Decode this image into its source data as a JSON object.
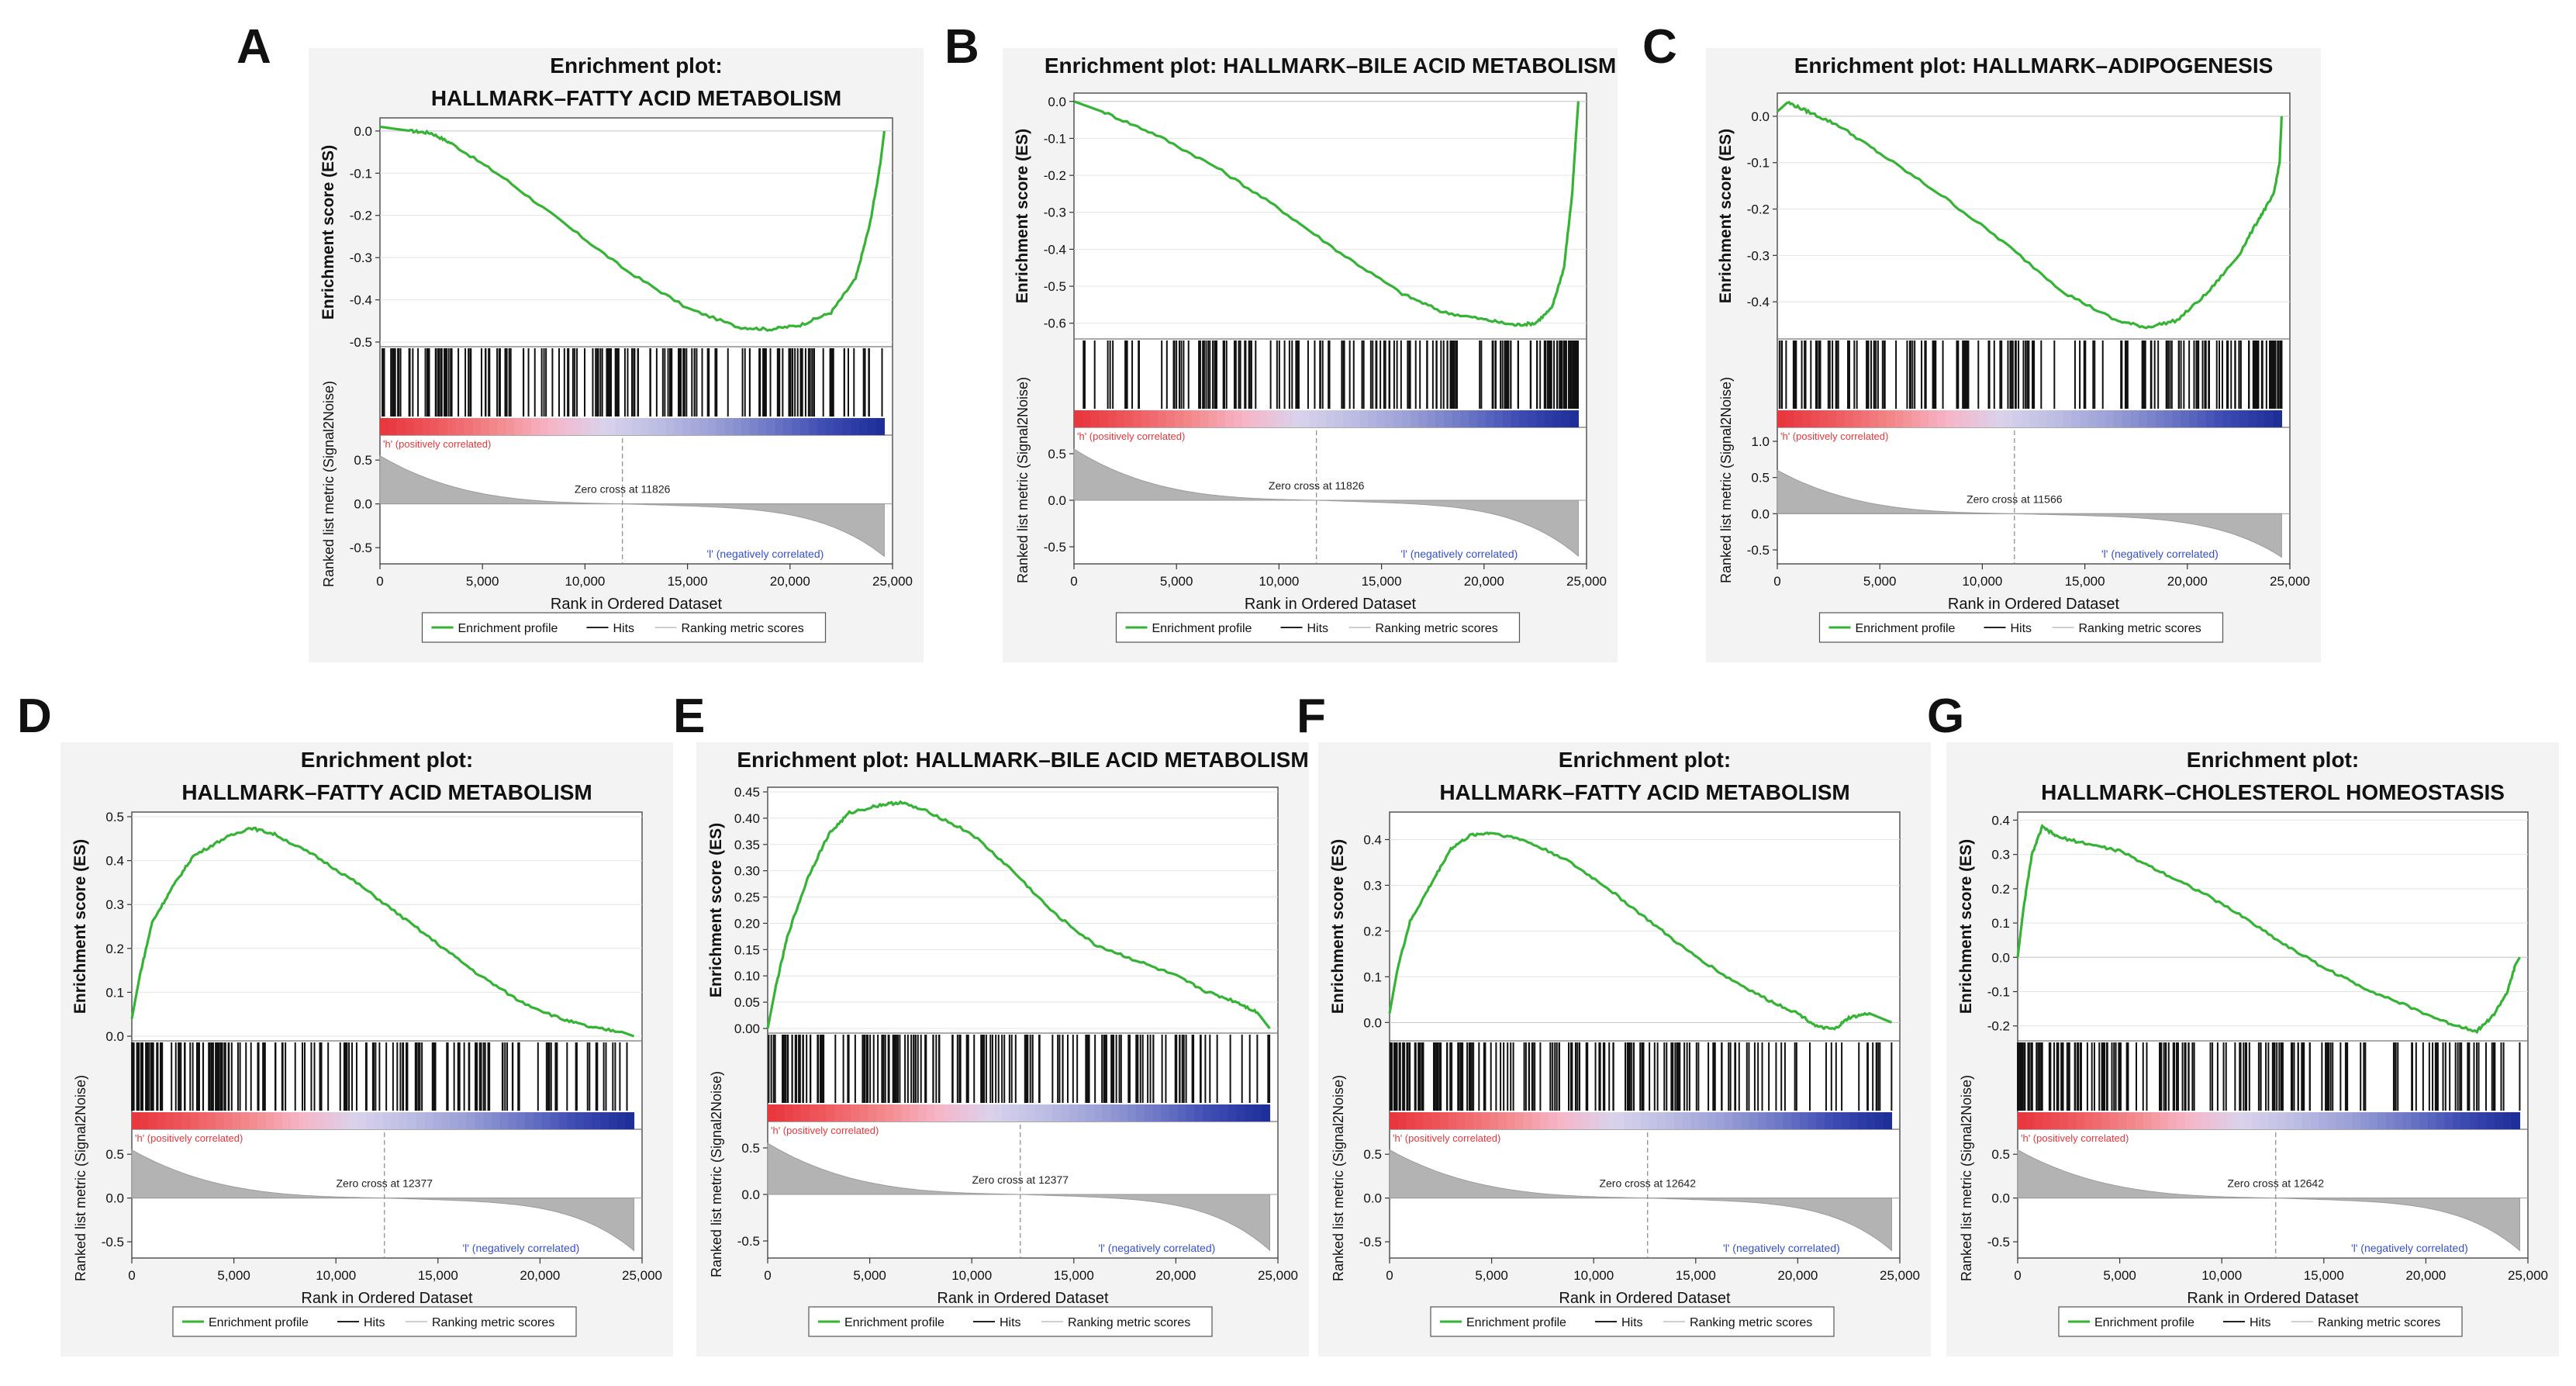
{
  "figure": {
    "panel_letters": [
      "A",
      "B",
      "C",
      "D",
      "E",
      "F",
      "G"
    ]
  },
  "colors": {
    "es_line": "#35b335",
    "hit": "#111111",
    "metric_fill": "#b3b3b3",
    "pos_label": "#e8353a",
    "neg_label": "#3650c9",
    "panel_bg": "#f3f3f3",
    "plot_bg": "#ffffff"
  },
  "chart_data": [
    {
      "type": "line",
      "letter": "A",
      "title_lines": [
        "Enrichment plot:",
        "HALLMARK–FATTY  ACID  METABOLISM"
      ],
      "ylabel": "Enrichment score (ES)",
      "yticks": [
        "0.0",
        "-0.1",
        "-0.2",
        "-0.3",
        "-0.4",
        "-0.5"
      ],
      "ylim": [
        -0.5,
        0.02
      ],
      "es_points": [
        [
          0,
          0.01
        ],
        [
          1500,
          0.0
        ],
        [
          2500,
          -0.005
        ],
        [
          3500,
          -0.03
        ],
        [
          6000,
          -0.11
        ],
        [
          9000,
          -0.22
        ],
        [
          12000,
          -0.33
        ],
        [
          15000,
          -0.42
        ],
        [
          17500,
          -0.465
        ],
        [
          19000,
          -0.47
        ],
        [
          20500,
          -0.46
        ],
        [
          22000,
          -0.43
        ],
        [
          23200,
          -0.35
        ],
        [
          23900,
          -0.22
        ],
        [
          24400,
          -0.08
        ],
        [
          24600,
          0.0
        ]
      ],
      "hit_density": "uniform",
      "metric_ylabel": "Ranked list metric (Signal2Noise)",
      "metric_yticks": [
        "0.5",
        "0.0",
        "-0.5"
      ],
      "metric_ylim": [
        -0.65,
        0.75
      ],
      "metric_start": 0.55,
      "metric_end": -0.6,
      "zero_cross": 11826,
      "zero_cross_label": "Zero cross at 11826",
      "pos_label": "'h' (positively correlated)",
      "neg_label": "'l' (negatively correlated)",
      "xlabel": "Rank in Ordered Dataset",
      "xticks": [
        "0",
        "5,000",
        "10,000",
        "15,000",
        "20,000",
        "25,000"
      ],
      "xlim": [
        0,
        25000
      ],
      "legend": [
        "Enrichment profile",
        "Hits",
        "Ranking metric scores"
      ]
    },
    {
      "type": "line",
      "letter": "B",
      "title_lines": [
        "Enrichment plot: HALLMARK–BILE  ACID  METABOLISM"
      ],
      "ylabel": "Enrichment score (ES)",
      "yticks": [
        "0.0",
        "-0.1",
        "-0.2",
        "-0.3",
        "-0.4",
        "-0.5",
        "-0.6"
      ],
      "ylim": [
        -0.63,
        0.01
      ],
      "es_points": [
        [
          0,
          0.0
        ],
        [
          1500,
          -0.03
        ],
        [
          4000,
          -0.09
        ],
        [
          7000,
          -0.18
        ],
        [
          10000,
          -0.29
        ],
        [
          13000,
          -0.41
        ],
        [
          16000,
          -0.52
        ],
        [
          18000,
          -0.57
        ],
        [
          20000,
          -0.59
        ],
        [
          21500,
          -0.605
        ],
        [
          22500,
          -0.6
        ],
        [
          23300,
          -0.56
        ],
        [
          23900,
          -0.45
        ],
        [
          24300,
          -0.25
        ],
        [
          24500,
          -0.08
        ],
        [
          24600,
          0.0
        ]
      ],
      "hit_density": "right",
      "metric_ylabel": "Ranked list metric (Signal2Noise)",
      "metric_yticks": [
        "0.5",
        "0.0",
        "-0.5"
      ],
      "metric_ylim": [
        -0.65,
        0.75
      ],
      "metric_start": 0.55,
      "metric_end": -0.6,
      "zero_cross": 11826,
      "zero_cross_label": "Zero cross at 11826",
      "pos_label": "'h' (positively correlated)",
      "neg_label": "'l' (negatively correlated)",
      "xlabel": "Rank in Ordered Dataset",
      "xticks": [
        "0",
        "5,000",
        "10,000",
        "15,000",
        "20,000",
        "25,000"
      ],
      "xlim": [
        0,
        25000
      ],
      "legend": [
        "Enrichment profile",
        "Hits",
        "Ranking metric scores"
      ]
    },
    {
      "type": "line",
      "letter": "C",
      "title_lines": [
        "Enrichment plot: HALLMARK–ADIPOGENESIS"
      ],
      "ylabel": "Enrichment score (ES)",
      "yticks": [
        "0.0",
        "-0.1",
        "-0.2",
        "-0.3",
        "-0.4"
      ],
      "ylim": [
        -0.47,
        0.04
      ],
      "es_points": [
        [
          0,
          0.01
        ],
        [
          500,
          0.03
        ],
        [
          1500,
          0.01
        ],
        [
          3000,
          -0.02
        ],
        [
          5000,
          -0.08
        ],
        [
          8000,
          -0.17
        ],
        [
          11000,
          -0.27
        ],
        [
          14000,
          -0.38
        ],
        [
          16500,
          -0.44
        ],
        [
          18000,
          -0.455
        ],
        [
          19500,
          -0.44
        ],
        [
          21000,
          -0.38
        ],
        [
          22500,
          -0.3
        ],
        [
          23500,
          -0.22
        ],
        [
          24200,
          -0.17
        ],
        [
          24500,
          -0.1
        ],
        [
          24600,
          0.0
        ]
      ],
      "hit_density": "right",
      "metric_ylabel": "Ranked list metric (Signal2Noise)",
      "metric_yticks": [
        "1.0",
        "0.5",
        "0.0",
        "-0.5"
      ],
      "metric_ylim": [
        -0.65,
        1.15
      ],
      "metric_start": 0.6,
      "metric_end": -0.6,
      "zero_cross": 11566,
      "zero_cross_label": "Zero cross at 11566",
      "pos_label": "'h' (positively correlated)",
      "neg_label": "'l' (negatively correlated)",
      "xlabel": "Rank in Ordered Dataset",
      "xticks": [
        "0",
        "5,000",
        "10,000",
        "15,000",
        "20,000",
        "25,000"
      ],
      "xlim": [
        0,
        25000
      ],
      "legend": [
        "Enrichment profile",
        "Hits",
        "Ranking metric scores"
      ]
    },
    {
      "type": "line",
      "letter": "D",
      "title_lines": [
        "Enrichment plot:",
        "HALLMARK–FATTY  ACID  METABOLISM"
      ],
      "ylabel": "Enrichment score (ES)",
      "yticks": [
        "0.5",
        "0.4",
        "0.3",
        "0.2",
        "0.1",
        "0.0"
      ],
      "ylim": [
        0.0,
        0.5
      ],
      "es_points": [
        [
          0,
          0.04
        ],
        [
          400,
          0.14
        ],
        [
          1000,
          0.26
        ],
        [
          2000,
          0.34
        ],
        [
          3000,
          0.41
        ],
        [
          4500,
          0.45
        ],
        [
          5800,
          0.475
        ],
        [
          7000,
          0.46
        ],
        [
          9000,
          0.41
        ],
        [
          11000,
          0.35
        ],
        [
          13000,
          0.28
        ],
        [
          15000,
          0.21
        ],
        [
          17000,
          0.14
        ],
        [
          19000,
          0.08
        ],
        [
          21000,
          0.04
        ],
        [
          22500,
          0.02
        ],
        [
          24000,
          0.01
        ],
        [
          24600,
          0.0
        ]
      ],
      "hit_density": "left",
      "metric_ylabel": "Ranked list metric (Signal2Noise)",
      "metric_yticks": [
        "0.5",
        "0.0",
        "-0.5"
      ],
      "metric_ylim": [
        -0.65,
        0.75
      ],
      "metric_start": 0.55,
      "metric_end": -0.6,
      "zero_cross": 12377,
      "zero_cross_label": "Zero cross at 12377",
      "pos_label": "'h' (positively correlated)",
      "neg_label": "'l' (negatively correlated)",
      "xlabel": "Rank in Ordered Dataset",
      "xticks": [
        "0",
        "5,000",
        "10,000",
        "15,000",
        "20,000",
        "25,000"
      ],
      "xlim": [
        0,
        25000
      ],
      "legend": [
        "Enrichment profile",
        "Hits",
        "Ranking metric scores"
      ]
    },
    {
      "type": "line",
      "letter": "E",
      "title_lines": [
        "Enrichment plot: HALLMARK–BILE  ACID  METABOLISM"
      ],
      "ylabel": "Enrichment score (ES)",
      "yticks": [
        "0.45",
        "0.40",
        "0.35",
        "0.30",
        "0.25",
        "0.20",
        "0.15",
        "0.10",
        "0.05",
        "0.00"
      ],
      "ylim": [
        0.0,
        0.45
      ],
      "es_points": [
        [
          0,
          0.0
        ],
        [
          400,
          0.08
        ],
        [
          1000,
          0.18
        ],
        [
          2000,
          0.29
        ],
        [
          3000,
          0.37
        ],
        [
          4000,
          0.41
        ],
        [
          5500,
          0.425
        ],
        [
          6500,
          0.43
        ],
        [
          8000,
          0.41
        ],
        [
          10000,
          0.37
        ],
        [
          12000,
          0.3
        ],
        [
          14000,
          0.22
        ],
        [
          16000,
          0.16
        ],
        [
          18000,
          0.13
        ],
        [
          20000,
          0.1
        ],
        [
          21500,
          0.07
        ],
        [
          23000,
          0.05
        ],
        [
          24000,
          0.03
        ],
        [
          24600,
          0.0
        ]
      ],
      "hit_density": "left",
      "metric_ylabel": "Ranked list metric (Signal2Noise)",
      "metric_yticks": [
        "0.5",
        "0.0",
        "-0.5"
      ],
      "metric_ylim": [
        -0.65,
        0.75
      ],
      "metric_start": 0.55,
      "metric_end": -0.6,
      "zero_cross": 12377,
      "zero_cross_label": "Zero cross at 12377",
      "pos_label": "'h' (positively correlated)",
      "neg_label": "'l' (negatively correlated)",
      "xlabel": "Rank in Ordered Dataset",
      "xticks": [
        "0",
        "5,000",
        "10,000",
        "15,000",
        "20,000",
        "25,000"
      ],
      "xlim": [
        0,
        25000
      ],
      "legend": [
        "Enrichment profile",
        "Hits",
        "Ranking metric scores"
      ]
    },
    {
      "type": "line",
      "letter": "F",
      "title_lines": [
        "Enrichment plot:",
        "HALLMARK–FATTY  ACID  METABOLISM"
      ],
      "ylabel": "Enrichment score (ES)",
      "yticks": [
        "0.4",
        "0.3",
        "0.2",
        "0.1",
        "0.0"
      ],
      "ylim": [
        -0.03,
        0.45
      ],
      "es_points": [
        [
          0,
          0.02
        ],
        [
          400,
          0.12
        ],
        [
          1000,
          0.22
        ],
        [
          2000,
          0.3
        ],
        [
          3000,
          0.38
        ],
        [
          4000,
          0.41
        ],
        [
          5000,
          0.415
        ],
        [
          6500,
          0.4
        ],
        [
          8500,
          0.36
        ],
        [
          10500,
          0.3
        ],
        [
          12500,
          0.23
        ],
        [
          14500,
          0.16
        ],
        [
          16500,
          0.1
        ],
        [
          18500,
          0.05
        ],
        [
          20000,
          0.02
        ],
        [
          21000,
          -0.01
        ],
        [
          21800,
          -0.015
        ],
        [
          22500,
          0.01
        ],
        [
          23500,
          0.02
        ],
        [
          24600,
          0.0
        ]
      ],
      "hit_density": "left",
      "metric_ylabel": "Ranked list metric (Signal2Noise)",
      "metric_yticks": [
        "0.5",
        "0.0",
        "-0.5"
      ],
      "metric_ylim": [
        -0.65,
        0.75
      ],
      "metric_start": 0.55,
      "metric_end": -0.6,
      "zero_cross": 12642,
      "zero_cross_label": "Zero cross at 12642",
      "pos_label": "'h' (positively correlated)",
      "neg_label": "'l' (negatively correlated)",
      "xlabel": "Rank in Ordered Dataset",
      "xticks": [
        "0",
        "5,000",
        "10,000",
        "15,000",
        "20,000",
        "25,000"
      ],
      "xlim": [
        0,
        25000
      ],
      "legend": [
        "Enrichment profile",
        "Hits",
        "Ranking metric scores"
      ]
    },
    {
      "type": "line",
      "letter": "G",
      "title_lines": [
        "Enrichment plot:",
        "HALLMARK–CHOLESTEROL  HOMEOSTASIS"
      ],
      "ylabel": "Enrichment score (ES)",
      "yticks": [
        "0.4",
        "0.3",
        "0.2",
        "0.1",
        "0.0",
        "-0.1",
        "-0.2"
      ],
      "ylim": [
        -0.23,
        0.41
      ],
      "es_points": [
        [
          0,
          0.0
        ],
        [
          300,
          0.15
        ],
        [
          700,
          0.3
        ],
        [
          1200,
          0.38
        ],
        [
          2000,
          0.35
        ],
        [
          3500,
          0.33
        ],
        [
          5000,
          0.31
        ],
        [
          7000,
          0.25
        ],
        [
          9000,
          0.19
        ],
        [
          11000,
          0.12
        ],
        [
          13000,
          0.04
        ],
        [
          15000,
          -0.03
        ],
        [
          17000,
          -0.09
        ],
        [
          19000,
          -0.14
        ],
        [
          21000,
          -0.19
        ],
        [
          22500,
          -0.215
        ],
        [
          23300,
          -0.17
        ],
        [
          24000,
          -0.1
        ],
        [
          24400,
          -0.02
        ],
        [
          24600,
          0.0
        ]
      ],
      "hit_density": "left",
      "metric_ylabel": "Ranked list metric (Signal2Noise)",
      "metric_yticks": [
        "0.5",
        "0.0",
        "-0.5"
      ],
      "metric_ylim": [
        -0.65,
        0.75
      ],
      "metric_start": 0.55,
      "metric_end": -0.6,
      "zero_cross": 12642,
      "zero_cross_label": "Zero cross at 12642",
      "pos_label": "'h' (positively correlated)",
      "neg_label": "'l' (negatively correlated)",
      "xlabel": "Rank in Ordered Dataset",
      "xticks": [
        "0",
        "5,000",
        "10,000",
        "15,000",
        "20,000",
        "25,000"
      ],
      "xlim": [
        0,
        25000
      ],
      "legend": [
        "Enrichment profile",
        "Hits",
        "Ranking metric scores"
      ]
    }
  ]
}
